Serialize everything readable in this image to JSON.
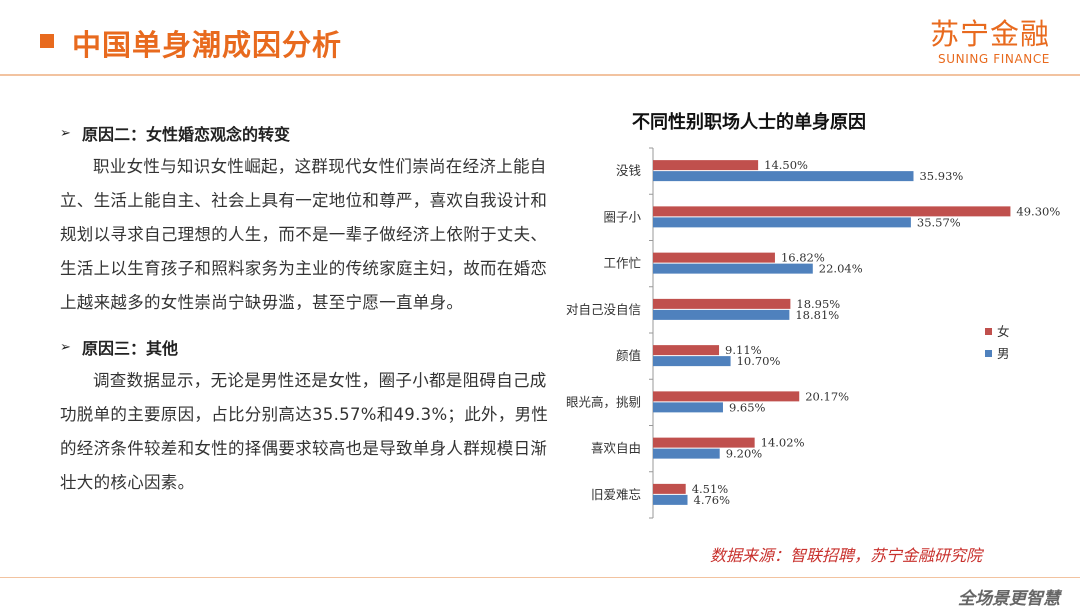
{
  "header": {
    "title": "中国单身潮成因分析",
    "logo_cn": "苏宁金融",
    "logo_en": "SUNING FINANCE"
  },
  "content": {
    "section2_title": "原因二：女性婚恋观念的转变",
    "section2_text": "职业女性与知识女性崛起，这群现代女性们崇尚在经济上能自立、生活上能自主、社会上具有一定地位和尊严，喜欢自我设计和规划以寻求自己理想的人生，而不是一辈子做经济上依附于丈夫、生活上以生育孩子和照料家务为主业的传统家庭主妇，故而在婚恋上越来越多的女性崇尚宁缺毋滥，甚至宁愿一直单身。",
    "section3_title": "原因三：其他",
    "section3_text": "调查数据显示，无论是男性还是女性，圈子小都是阻碍自己成功脱单的主要原因，占比分别高达35.57%和49.3%；此外，男性的经济条件较差和女性的择偶要求较高也是导致单身人群规模日渐壮大的核心因素。",
    "bullet_glyph": "➢"
  },
  "chart_data": {
    "type": "bar",
    "orientation": "horizontal",
    "title": "不同性别职场人士的单身原因",
    "categories": [
      "没钱",
      "圈子小",
      "工作忙",
      "对自己没自信",
      "颜值",
      "眼光高，挑剔",
      "喜欢自由",
      "旧爱难忘"
    ],
    "series": [
      {
        "name": "女",
        "color": "#c0504d",
        "values": [
          14.5,
          49.3,
          16.82,
          18.95,
          9.11,
          20.17,
          14.02,
          4.51
        ],
        "labels": [
          "14.50%",
          "49.30%",
          "16.82%",
          "18.95%",
          "9.11%",
          "20.17%",
          "14.02%",
          "4.51%"
        ]
      },
      {
        "name": "男",
        "color": "#4f81bd",
        "values": [
          35.93,
          35.57,
          22.04,
          18.81,
          10.7,
          9.65,
          9.2,
          4.76
        ],
        "labels": [
          "35.93%",
          "35.57%",
          "22.04%",
          "18.81%",
          "10.70%",
          "9.65%",
          "9.20%",
          "4.76%"
        ]
      }
    ],
    "xlim": [
      0,
      50
    ],
    "legend_position": "right",
    "grid": false
  },
  "footer": {
    "source": "数据来源：智联招聘，苏宁金融研究院",
    "brand": "全场景更智慧"
  }
}
